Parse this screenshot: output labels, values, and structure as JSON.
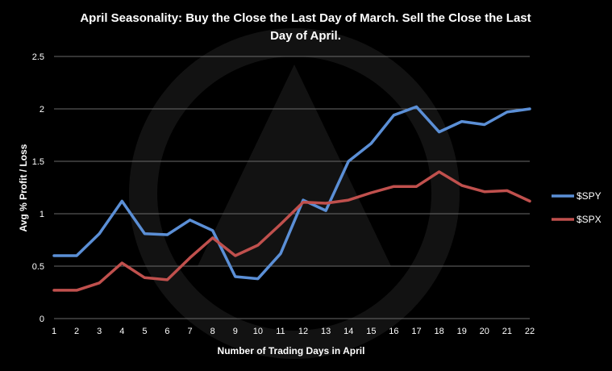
{
  "chart_data": {
    "type": "line",
    "title_lines": [
      "April Seasonality: Buy the Close the Last Day of March. Sell the Close the Last",
      "Day of April."
    ],
    "xlabel": "Number of Trading Days in April",
    "ylabel": "Avg % Profit / Loss",
    "x": [
      1,
      2,
      3,
      4,
      5,
      6,
      7,
      8,
      9,
      10,
      11,
      12,
      13,
      14,
      15,
      16,
      17,
      18,
      19,
      20,
      21,
      22
    ],
    "x_tick_labels": [
      "1",
      "2",
      "3",
      "4",
      "5",
      "6",
      "7",
      "8",
      "9",
      "10",
      "11",
      "12",
      "13",
      "14",
      "15",
      "16",
      "17",
      "18",
      "19",
      "20",
      "21",
      "22"
    ],
    "ylim": [
      0,
      2.5
    ],
    "y_ticks": [
      0,
      0.5,
      1,
      1.5,
      2,
      2.5
    ],
    "y_tick_labels": [
      "0",
      "0.5",
      "1",
      "1.5",
      "2",
      "2.5"
    ],
    "grid": true,
    "legend_position": "right",
    "series": [
      {
        "name": "$SPY",
        "color": "#5b8fd6",
        "values": [
          0.6,
          0.6,
          0.81,
          1.12,
          0.81,
          0.8,
          0.94,
          0.84,
          0.4,
          0.38,
          0.62,
          1.13,
          1.03,
          1.5,
          1.67,
          1.94,
          2.02,
          1.78,
          1.88,
          1.85,
          1.97,
          2.0
        ]
      },
      {
        "name": "$SPX",
        "color": "#c0504d",
        "values": [
          0.27,
          0.27,
          0.34,
          0.53,
          0.39,
          0.37,
          0.58,
          0.77,
          0.6,
          0.7,
          0.9,
          1.11,
          1.1,
          1.13,
          1.2,
          1.26,
          1.26,
          1.4,
          1.27,
          1.21,
          1.22,
          1.12
        ]
      }
    ]
  }
}
